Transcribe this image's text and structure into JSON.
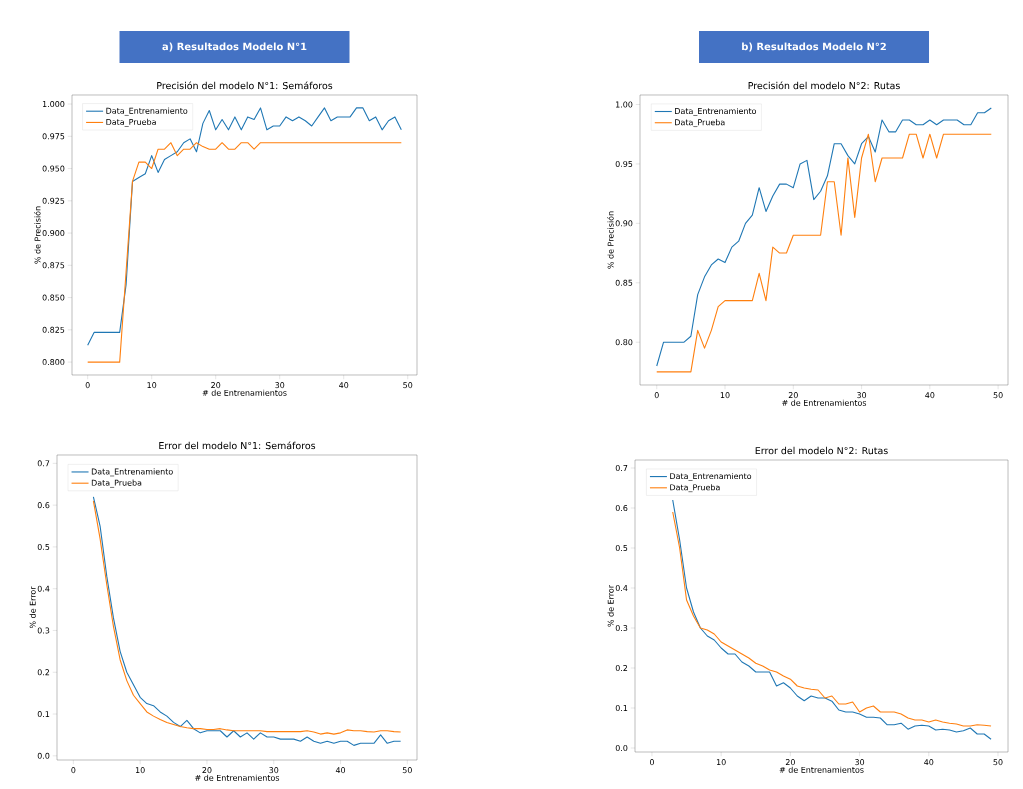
{
  "chart_data": [
    {
      "type": "line",
      "title": "Precisión del modelo N°1: Semáforos",
      "annotations": [
        "a)   Resultados Modelo N°1"
      ],
      "xlabel": "# de Entrenamientos",
      "ylabel": "% de Precisión",
      "legend": "top left",
      "x": [
        0,
        1,
        2,
        3,
        4,
        5,
        6,
        7,
        8,
        9,
        10,
        11,
        12,
        13,
        14,
        15,
        16,
        17,
        18,
        19,
        20,
        21,
        22,
        23,
        24,
        25,
        26,
        27,
        28,
        29,
        30,
        31,
        32,
        33,
        34,
        35,
        36,
        37,
        38,
        39,
        40,
        41,
        42,
        43,
        44,
        45,
        46,
        47,
        48,
        49
      ],
      "xlim": [
        -2.45,
        51.45
      ],
      "xticks": [
        0,
        10,
        20,
        30,
        40,
        50
      ],
      "ylim": [
        0.79,
        1.007
      ],
      "yticks": [
        {
          "value": 0.8,
          "label": "0.800"
        },
        {
          "value": 0.825,
          "label": "0.825"
        },
        {
          "value": 0.85,
          "label": "0.850"
        },
        {
          "value": 0.875,
          "label": "0.875"
        },
        {
          "value": 0.9,
          "label": "0.900"
        },
        {
          "value": 0.925,
          "label": "0.925"
        },
        {
          "value": 0.95,
          "label": "0.950"
        },
        {
          "value": 0.975,
          "label": "0.975"
        },
        {
          "value": 1.0,
          "label": "1.000"
        }
      ],
      "series": [
        {
          "name": "Data_Entrenamiento",
          "color": "#1f77b4",
          "values": [
            0.813,
            0.823,
            0.823,
            0.823,
            0.823,
            0.823,
            0.86,
            0.94,
            0.943,
            0.946,
            0.96,
            0.947,
            0.957,
            0.96,
            0.963,
            0.97,
            0.973,
            0.963,
            0.985,
            0.995,
            0.98,
            0.988,
            0.98,
            0.99,
            0.98,
            0.99,
            0.988,
            0.997,
            0.98,
            0.983,
            0.983,
            0.99,
            0.987,
            0.99,
            0.987,
            0.983,
            0.99,
            0.997,
            0.987,
            0.99,
            0.99,
            0.99,
            0.997,
            0.997,
            0.987,
            0.99,
            0.98,
            0.987,
            0.99,
            0.98
          ]
        },
        {
          "name": "Data_Prueba",
          "color": "#ff7f0e",
          "values": [
            0.8,
            0.8,
            0.8,
            0.8,
            0.8,
            0.8,
            0.87,
            0.94,
            0.955,
            0.955,
            0.95,
            0.965,
            0.965,
            0.97,
            0.96,
            0.965,
            0.965,
            0.97,
            0.967,
            0.965,
            0.965,
            0.97,
            0.965,
            0.965,
            0.97,
            0.97,
            0.965,
            0.97,
            0.97,
            0.97,
            0.97,
            0.97,
            0.97,
            0.97,
            0.97,
            0.97,
            0.97,
            0.97,
            0.97,
            0.97,
            0.97,
            0.97,
            0.97,
            0.97,
            0.97,
            0.97,
            0.97,
            0.97,
            0.97,
            0.97
          ]
        }
      ]
    },
    {
      "type": "line",
      "title": "Precisión del modelo N°2: Rutas",
      "annotations": [
        "b)   Resultados Modelo N°2"
      ],
      "xlabel": "# de Entrenamientos",
      "ylabel": "% de Precisión",
      "legend": "top left",
      "x": [
        0,
        1,
        2,
        3,
        4,
        5,
        6,
        7,
        8,
        9,
        10,
        11,
        12,
        13,
        14,
        15,
        16,
        17,
        18,
        19,
        20,
        21,
        22,
        23,
        24,
        25,
        26,
        27,
        28,
        29,
        30,
        31,
        32,
        33,
        34,
        35,
        36,
        37,
        38,
        39,
        40,
        41,
        42,
        43,
        44,
        45,
        46,
        47,
        48,
        49
      ],
      "xlim": [
        -2.45,
        51.45
      ],
      "xticks": [
        0,
        10,
        20,
        30,
        40,
        50
      ],
      "ylim": [
        0.764,
        1.008
      ],
      "yticks": [
        {
          "value": 0.8,
          "label": "0.80"
        },
        {
          "value": 0.85,
          "label": "0.85"
        },
        {
          "value": 0.9,
          "label": "0.90"
        },
        {
          "value": 0.95,
          "label": "0.95"
        },
        {
          "value": 1.0,
          "label": "1.00"
        }
      ],
      "series": [
        {
          "name": "Data_Entrenamiento",
          "color": "#1f77b4",
          "values": [
            0.78,
            0.8,
            0.8,
            0.8,
            0.8,
            0.805,
            0.84,
            0.855,
            0.865,
            0.87,
            0.867,
            0.88,
            0.885,
            0.9,
            0.907,
            0.93,
            0.91,
            0.923,
            0.933,
            0.933,
            0.93,
            0.95,
            0.953,
            0.92,
            0.927,
            0.94,
            0.967,
            0.967,
            0.957,
            0.95,
            0.967,
            0.973,
            0.96,
            0.987,
            0.977,
            0.977,
            0.987,
            0.987,
            0.983,
            0.983,
            0.987,
            0.983,
            0.987,
            0.987,
            0.987,
            0.983,
            0.983,
            0.993,
            0.993,
            0.997
          ]
        },
        {
          "name": "Data_Prueba",
          "color": "#ff7f0e",
          "values": [
            0.775,
            0.775,
            0.775,
            0.775,
            0.775,
            0.775,
            0.81,
            0.795,
            0.81,
            0.83,
            0.835,
            0.835,
            0.835,
            0.835,
            0.835,
            0.858,
            0.835,
            0.88,
            0.875,
            0.875,
            0.89,
            0.89,
            0.89,
            0.89,
            0.89,
            0.935,
            0.935,
            0.89,
            0.955,
            0.905,
            0.955,
            0.975,
            0.935,
            0.955,
            0.955,
            0.955,
            0.955,
            0.975,
            0.975,
            0.955,
            0.975,
            0.955,
            0.975,
            0.975,
            0.975,
            0.975,
            0.975,
            0.975,
            0.975,
            0.975
          ]
        }
      ]
    },
    {
      "type": "line",
      "title": "Error  del modelo N°1: Semáforos",
      "xlabel": "# de Entrenamientos",
      "ylabel": "% de Error",
      "legend": "top left",
      "x": [
        3,
        4,
        5,
        6,
        7,
        8,
        9,
        10,
        11,
        12,
        13,
        14,
        15,
        16,
        17,
        18,
        19,
        20,
        21,
        22,
        23,
        24,
        25,
        26,
        27,
        28,
        29,
        30,
        31,
        32,
        33,
        34,
        35,
        36,
        37,
        38,
        39,
        40,
        41,
        42,
        43,
        44,
        45,
        46,
        47,
        48,
        49
      ],
      "xlim": [
        -2.45,
        51.45
      ],
      "xticks": [
        0,
        10,
        20,
        30,
        40,
        50
      ],
      "ylim": [
        -0.01,
        0.72
      ],
      "yticks": [
        {
          "value": 0,
          "label": "0.0"
        },
        0.1,
        0.2,
        0.3,
        0.4,
        0.5,
        0.6,
        0.7
      ],
      "series": [
        {
          "name": "Data_Entrenamiento",
          "color": "#1f77b4",
          "values": [
            0.62,
            0.55,
            0.43,
            0.33,
            0.25,
            0.2,
            0.17,
            0.14,
            0.125,
            0.12,
            0.105,
            0.095,
            0.08,
            0.07,
            0.085,
            0.065,
            0.055,
            0.06,
            0.06,
            0.06,
            0.045,
            0.06,
            0.045,
            0.055,
            0.04,
            0.055,
            0.045,
            0.045,
            0.04,
            0.04,
            0.04,
            0.035,
            0.045,
            0.035,
            0.03,
            0.035,
            0.03,
            0.035,
            0.035,
            0.025,
            0.03,
            0.03,
            0.03,
            0.05,
            0.03,
            0.035,
            0.035
          ]
        },
        {
          "name": "Data_Prueba",
          "color": "#ff7f0e",
          "values": [
            0.61,
            0.52,
            0.41,
            0.31,
            0.23,
            0.18,
            0.145,
            0.125,
            0.105,
            0.095,
            0.087,
            0.08,
            0.075,
            0.07,
            0.067,
            0.065,
            0.065,
            0.063,
            0.063,
            0.065,
            0.062,
            0.06,
            0.06,
            0.06,
            0.06,
            0.06,
            0.058,
            0.058,
            0.058,
            0.058,
            0.058,
            0.058,
            0.06,
            0.057,
            0.052,
            0.055,
            0.052,
            0.055,
            0.062,
            0.06,
            0.06,
            0.058,
            0.057,
            0.06,
            0.06,
            0.058,
            0.057
          ]
        }
      ]
    },
    {
      "type": "line",
      "title": "Error  del modelo N°2: Rutas",
      "xlabel": "# de Entrenamientos",
      "ylabel": "% de Error",
      "legend": "top left",
      "x": [
        3,
        4,
        5,
        6,
        7,
        8,
        9,
        10,
        11,
        12,
        13,
        14,
        15,
        16,
        17,
        18,
        19,
        20,
        21,
        22,
        23,
        24,
        25,
        26,
        27,
        28,
        29,
        30,
        31,
        32,
        33,
        34,
        35,
        36,
        37,
        38,
        39,
        40,
        41,
        42,
        43,
        44,
        45,
        46,
        47,
        48,
        49
      ],
      "xlim": [
        -2.45,
        51.45
      ],
      "xticks": [
        0,
        10,
        20,
        30,
        40,
        50
      ],
      "ylim": [
        -0.01,
        0.72
      ],
      "yticks": [
        {
          "value": 0,
          "label": "0.0"
        },
        0.1,
        0.2,
        0.3,
        0.4,
        0.5,
        0.6,
        0.7
      ],
      "series": [
        {
          "name": "Data_Entrenamiento",
          "color": "#1f77b4",
          "values": [
            0.62,
            0.52,
            0.4,
            0.34,
            0.3,
            0.28,
            0.27,
            0.25,
            0.235,
            0.235,
            0.215,
            0.205,
            0.19,
            0.19,
            0.19,
            0.155,
            0.163,
            0.15,
            0.13,
            0.118,
            0.13,
            0.125,
            0.125,
            0.117,
            0.095,
            0.09,
            0.09,
            0.085,
            0.077,
            0.077,
            0.075,
            0.058,
            0.058,
            0.062,
            0.047,
            0.055,
            0.057,
            0.055,
            0.045,
            0.047,
            0.045,
            0.04,
            0.043,
            0.05,
            0.035,
            0.035,
            0.022
          ]
        },
        {
          "name": "Data_Prueba",
          "color": "#ff7f0e",
          "values": [
            0.59,
            0.5,
            0.37,
            0.33,
            0.3,
            0.295,
            0.285,
            0.265,
            0.255,
            0.245,
            0.235,
            0.225,
            0.212,
            0.205,
            0.195,
            0.19,
            0.18,
            0.172,
            0.155,
            0.15,
            0.147,
            0.145,
            0.125,
            0.13,
            0.11,
            0.11,
            0.115,
            0.09,
            0.1,
            0.105,
            0.09,
            0.09,
            0.09,
            0.085,
            0.075,
            0.07,
            0.07,
            0.065,
            0.07,
            0.065,
            0.062,
            0.06,
            0.055,
            0.055,
            0.058,
            0.057,
            0.055
          ]
        }
      ]
    }
  ]
}
